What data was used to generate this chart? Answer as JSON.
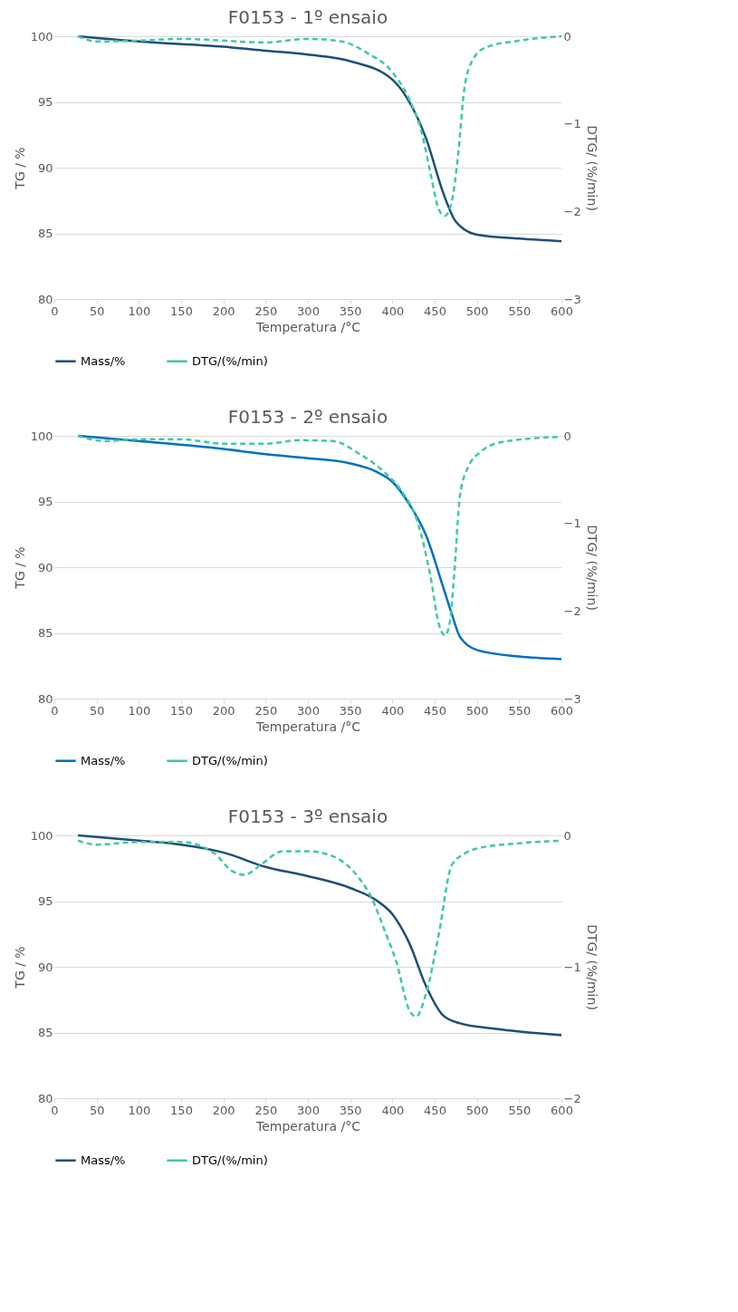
{
  "chart_data": [
    {
      "type": "line",
      "title": "F0153 - 1º ensaio",
      "xlabel": "Temperatura /°C",
      "ylabel": "TG / %",
      "y2label": "DTG/ (%/min)",
      "xlim": [
        0,
        600
      ],
      "xticks": [
        0,
        50,
        100,
        150,
        200,
        250,
        300,
        350,
        400,
        450,
        500,
        550,
        600
      ],
      "ylim": [
        80,
        100
      ],
      "yticks": [
        80,
        85,
        90,
        95,
        100
      ],
      "y2lim": [
        -3,
        0
      ],
      "y2ticks": [
        -3,
        -2,
        -1,
        0
      ],
      "grid": "y",
      "legend": "bottom",
      "series": [
        {
          "name": "Mass/%",
          "color": "#1f4e79",
          "line_style": "solid",
          "x": [
            28,
            100,
            200,
            250,
            300,
            350,
            400,
            420,
            440,
            460,
            475,
            500,
            550,
            600
          ],
          "values": [
            100,
            99.6,
            99.2,
            98.9,
            98.6,
            98.1,
            96.7,
            95,
            92.2,
            88.1,
            85.9,
            84.9,
            84.6,
            84.4
          ]
        },
        {
          "name": "DTG/(%/min)",
          "color": "#3ec9a7",
          "line_style": "dashed",
          "axis": "y2",
          "x": [
            28,
            50,
            100,
            150,
            250,
            300,
            340,
            370,
            400,
            420,
            435,
            445,
            455,
            462,
            470,
            478,
            485,
            495,
            510,
            550,
            600
          ],
          "values": [
            0,
            -0.06,
            -0.05,
            -0.03,
            -0.07,
            -0.03,
            -0.06,
            -0.19,
            -0.41,
            -0.72,
            -1.11,
            -1.56,
            -1.98,
            -2.05,
            -1.9,
            -1.33,
            -0.61,
            -0.27,
            -0.13,
            -0.05,
            0
          ]
        }
      ]
    },
    {
      "type": "line",
      "title": "F0153 - 2º ensaio",
      "xlabel": "Temperatura /°C",
      "ylabel": "TG / %",
      "y2label": "DTG/ (%/min)",
      "xlim": [
        0,
        600
      ],
      "xticks": [
        0,
        50,
        100,
        150,
        200,
        250,
        300,
        350,
        400,
        450,
        500,
        550,
        600
      ],
      "ylim": [
        80,
        100
      ],
      "yticks": [
        80,
        85,
        90,
        95,
        100
      ],
      "y2lim": [
        -3,
        0
      ],
      "y2ticks": [
        -3,
        -2,
        -1,
        0
      ],
      "grid": "y",
      "legend": "bottom",
      "series": [
        {
          "name": "Mass/%",
          "color": "#0070c0",
          "line_style": "solid",
          "x": [
            28,
            100,
            200,
            250,
            300,
            350,
            380,
            400,
            420,
            440,
            460,
            470,
            480,
            500,
            550,
            600
          ],
          "values": [
            100,
            99.6,
            99.0,
            98.6,
            98.3,
            97.9,
            97.3,
            96.5,
            94.8,
            92.4,
            88.5,
            86.5,
            84.7,
            83.7,
            83.2,
            83.0
          ]
        },
        {
          "name": "DTG/(%/min)",
          "color": "#3ec9a7",
          "line_style": "dashed",
          "axis": "y2",
          "x": [
            28,
            60,
            100,
            150,
            200,
            250,
            290,
            330,
            360,
            390,
            410,
            430,
            445,
            455,
            462,
            467,
            473,
            480,
            490,
            505,
            530,
            600
          ],
          "values": [
            0,
            -0.06,
            -0.04,
            -0.04,
            -0.09,
            -0.09,
            -0.05,
            -0.06,
            -0.2,
            -0.41,
            -0.62,
            -0.99,
            -1.6,
            -2.15,
            -2.28,
            -2.18,
            -1.6,
            -0.68,
            -0.35,
            -0.18,
            -0.07,
            -0.01
          ]
        }
      ]
    },
    {
      "type": "line",
      "title": "F0153 - 3º ensaio",
      "xlabel": "Temperatura /°C",
      "ylabel": "TG / %",
      "y2label": "DTG/ (%/min)",
      "xlim": [
        0,
        600
      ],
      "xticks": [
        0,
        50,
        100,
        150,
        200,
        250,
        300,
        350,
        400,
        450,
        500,
        550,
        600
      ],
      "ylim": [
        80,
        100
      ],
      "yticks": [
        80,
        85,
        90,
        95,
        100
      ],
      "y2lim": [
        -2,
        0
      ],
      "y2ticks": [
        -2,
        -1,
        0
      ],
      "grid": "y",
      "legend": "bottom",
      "series": [
        {
          "name": "Mass/%",
          "color": "#1f4e79",
          "line_style": "solid",
          "x": [
            28,
            100,
            150,
            200,
            250,
            300,
            350,
            380,
            400,
            420,
            440,
            460,
            480,
            520,
            600
          ],
          "values": [
            100,
            99.6,
            99.3,
            98.7,
            97.6,
            96.9,
            96.0,
            95.1,
            94,
            91.8,
            88.5,
            86.3,
            85.7,
            85.3,
            84.8
          ]
        },
        {
          "name": "DTG/(%/min)",
          "color": "#3ec9a7",
          "line_style": "dashed",
          "axis": "y2",
          "x": [
            28,
            50,
            100,
            150,
            190,
            210,
            225,
            245,
            270,
            300,
            330,
            360,
            375,
            390,
            405,
            420,
            428,
            440,
            455,
            470,
            485,
            500,
            550,
            600
          ],
          "values": [
            -0.04,
            -0.07,
            -0.05,
            -0.05,
            -0.14,
            -0.27,
            -0.3,
            -0.22,
            -0.12,
            -0.12,
            -0.16,
            -0.32,
            -0.47,
            -0.71,
            -0.97,
            -1.33,
            -1.38,
            -1.2,
            -0.75,
            -0.23,
            -0.14,
            -0.1,
            -0.06,
            -0.04
          ]
        }
      ]
    }
  ]
}
